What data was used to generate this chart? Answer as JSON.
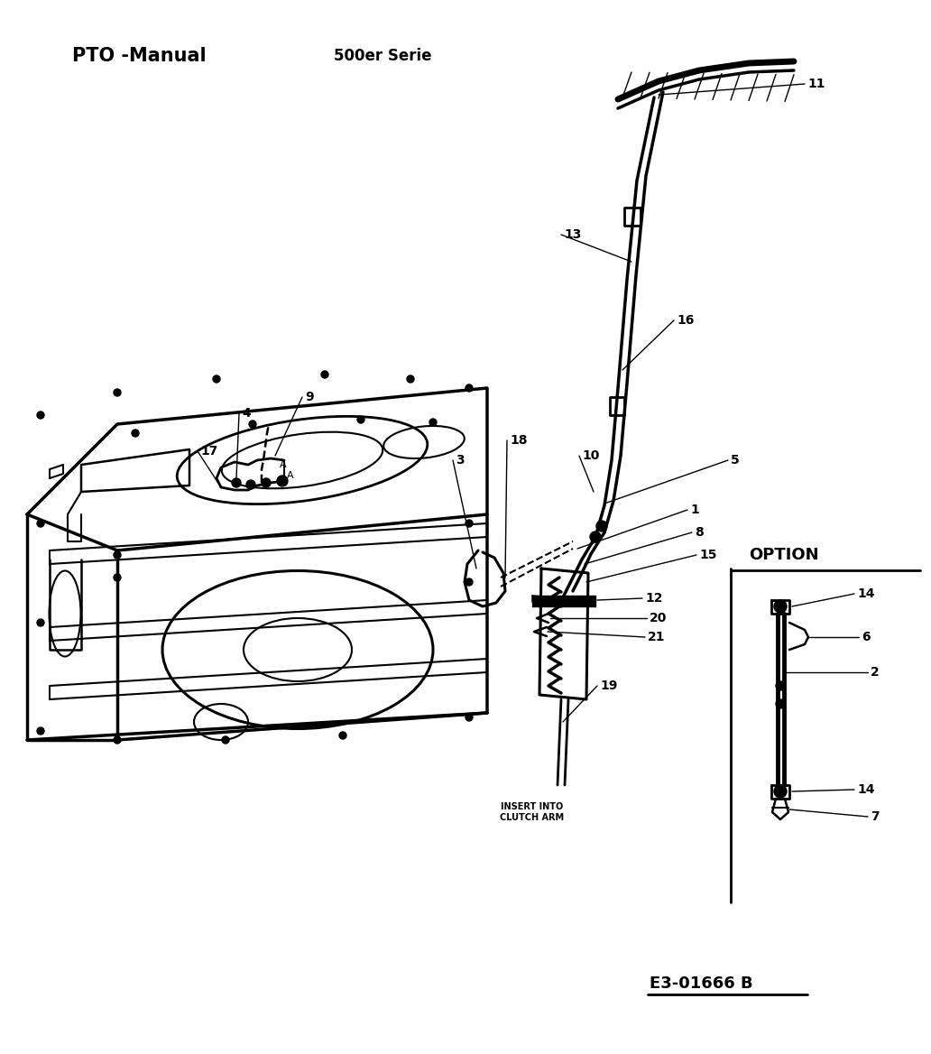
{
  "title_left": "PTO -Manual",
  "title_center": "500er Serie",
  "reference_code": "E3-01666 B",
  "option_label": "OPTION",
  "bg_color": "#ffffff",
  "line_color": "#000000",
  "insert_label": "INSERT INTO\nCLUTCH ARM",
  "figwidth": 10.32,
  "figheight": 11.68,
  "dpi": 100
}
